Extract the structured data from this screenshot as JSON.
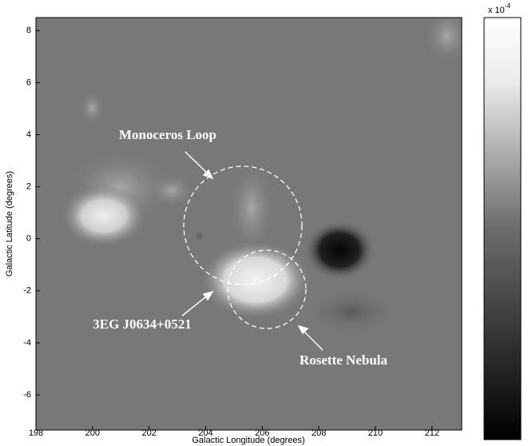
{
  "chart_data": {
    "type": "image",
    "xlabel": "Galactic Longitude (degrees)",
    "ylabel": "Galactic Latitude (degrees)",
    "xlim": [
      198,
      213.05
    ],
    "xticks": [
      198,
      200,
      202,
      204,
      206,
      208,
      210,
      212
    ],
    "ylim": [
      -7.35,
      8.5
    ],
    "yticks": [
      -6,
      -4,
      -2,
      0,
      2,
      4,
      6,
      8
    ],
    "colorbar_label": "x 10",
    "colorbar_exponent": "-4",
    "annotations": [
      "Monoceros Loop",
      "3EG J0634+0521",
      "Rosette Nebula"
    ]
  }
}
